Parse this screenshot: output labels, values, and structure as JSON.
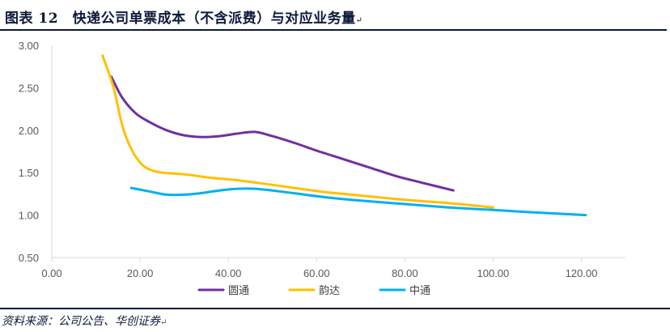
{
  "header": {
    "title": "图表 12　快递公司单票成本（不含派费）与对应业务量",
    "end_mark": "↵"
  },
  "footer": {
    "source": "资料来源：公司公告、华创证券",
    "end_mark": "↵"
  },
  "chart_data": {
    "type": "line",
    "title": "",
    "xlabel": "",
    "ylabel": "",
    "xlim": [
      0,
      130
    ],
    "ylim": [
      0.5,
      3.0
    ],
    "x_ticks": [
      "0.00",
      "20.00",
      "40.00",
      "60.00",
      "80.00",
      "100.00",
      "120.00"
    ],
    "x_tick_values": [
      0,
      20,
      40,
      60,
      80,
      100,
      120
    ],
    "y_ticks": [
      "0.50",
      "1.00",
      "1.50",
      "2.00",
      "2.50",
      "3.00"
    ],
    "y_tick_values": [
      0.5,
      1.0,
      1.5,
      2.0,
      2.5,
      3.0
    ],
    "grid": false,
    "legend_position": "bottom-center",
    "series": [
      {
        "name": "圆通",
        "color": "#7030a0",
        "x": [
          13.5,
          16,
          19,
          22,
          26,
          30,
          34,
          38,
          42,
          46,
          50,
          55,
          60,
          66,
          72,
          78,
          84,
          91
        ],
        "y": [
          2.63,
          2.38,
          2.2,
          2.1,
          2.0,
          1.94,
          1.92,
          1.93,
          1.96,
          1.98,
          1.93,
          1.85,
          1.76,
          1.66,
          1.56,
          1.46,
          1.38,
          1.29
        ]
      },
      {
        "name": "韵达",
        "color": "#ffc000",
        "x": [
          11.5,
          14,
          16,
          18,
          20,
          22,
          25,
          30,
          36,
          42,
          48,
          55,
          62,
          70,
          80,
          90,
          100
        ],
        "y": [
          2.88,
          2.5,
          2.05,
          1.78,
          1.62,
          1.54,
          1.5,
          1.48,
          1.44,
          1.41,
          1.37,
          1.32,
          1.27,
          1.23,
          1.18,
          1.14,
          1.09
        ]
      },
      {
        "name": "中通",
        "color": "#00b0f0",
        "x": [
          18,
          22,
          26,
          30,
          34,
          38,
          42,
          46,
          50,
          56,
          62,
          70,
          80,
          90,
          100,
          110,
          121
        ],
        "y": [
          1.32,
          1.28,
          1.24,
          1.24,
          1.26,
          1.29,
          1.31,
          1.31,
          1.29,
          1.25,
          1.21,
          1.17,
          1.13,
          1.09,
          1.06,
          1.03,
          1.0
        ]
      }
    ]
  }
}
